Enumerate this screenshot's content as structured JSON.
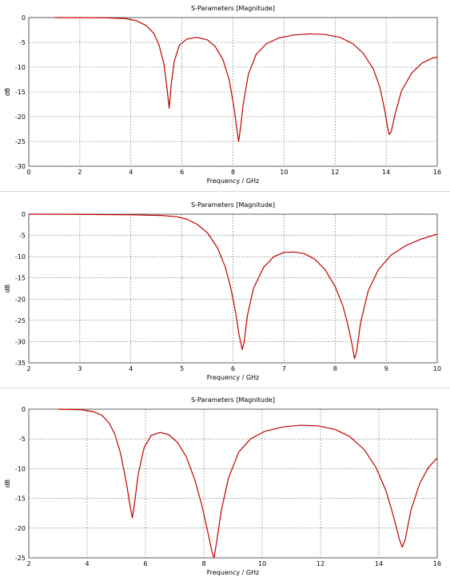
{
  "chart_data": [
    {
      "type": "line",
      "title": "S-Parameters [Magnitude]",
      "xlabel": "Frequency / GHz",
      "ylabel": "dB",
      "xlim": [
        0,
        16
      ],
      "ylim": [
        -30,
        0
      ],
      "xticks": [
        0,
        2,
        4,
        6,
        8,
        10,
        12,
        14,
        16
      ],
      "yticks": [
        0,
        -5,
        -10,
        -15,
        -20,
        -25,
        -30
      ],
      "grid": true,
      "line_color": "#c00000",
      "series": [
        {
          "x": [
            1.0,
            2.0,
            3.0,
            3.8,
            4.2,
            4.6,
            4.9,
            5.1,
            5.3,
            5.42,
            5.5,
            5.58,
            5.7,
            5.9,
            6.2,
            6.6,
            7.0,
            7.3,
            7.6,
            7.85,
            8.05,
            8.15,
            8.22,
            8.3,
            8.4,
            8.6,
            8.9,
            9.3,
            9.8,
            10.4,
            11.0,
            11.6,
            12.2,
            12.7,
            13.1,
            13.5,
            13.75,
            13.95,
            14.05,
            14.12,
            14.2,
            14.35,
            14.6,
            15.0,
            15.4,
            15.8,
            16.0
          ],
          "y": [
            0,
            0,
            -0.05,
            -0.2,
            -0.6,
            -1.6,
            -3.2,
            -5.5,
            -9.5,
            -14.5,
            -18.3,
            -13.5,
            -8.8,
            -5.6,
            -4.3,
            -4.0,
            -4.5,
            -5.8,
            -8.4,
            -12.5,
            -18.5,
            -22.5,
            -25.0,
            -22.0,
            -17.5,
            -11.5,
            -7.5,
            -5.3,
            -4.1,
            -3.5,
            -3.3,
            -3.4,
            -4.0,
            -5.3,
            -7.2,
            -10.4,
            -14.0,
            -18.8,
            -22.0,
            -23.6,
            -23.0,
            -19.5,
            -14.8,
            -11.2,
            -9.2,
            -8.2,
            -8.0
          ]
        }
      ]
    },
    {
      "type": "line",
      "title": "S-Parameters [Magnitude]",
      "xlabel": "Frequency / GHz",
      "ylabel": "dB",
      "xlim": [
        2,
        10
      ],
      "ylim": [
        -35,
        0
      ],
      "xticks": [
        2,
        3,
        4,
        5,
        6,
        7,
        8,
        9,
        10
      ],
      "yticks": [
        0,
        -5,
        -10,
        -15,
        -20,
        -25,
        -30,
        -35
      ],
      "grid": true,
      "line_color": "#c00000",
      "series": [
        {
          "x": [
            2.0,
            3.0,
            4.0,
            4.6,
            4.9,
            5.1,
            5.3,
            5.5,
            5.7,
            5.85,
            5.95,
            6.05,
            6.12,
            6.18,
            6.22,
            6.28,
            6.4,
            6.6,
            6.8,
            7.0,
            7.2,
            7.4,
            7.6,
            7.8,
            8.0,
            8.15,
            8.25,
            8.33,
            8.38,
            8.42,
            8.5,
            8.65,
            8.85,
            9.1,
            9.4,
            9.7,
            10.0
          ],
          "y": [
            0,
            -0.05,
            -0.15,
            -0.3,
            -0.6,
            -1.2,
            -2.4,
            -4.4,
            -8.0,
            -12.5,
            -17.0,
            -23.0,
            -28.5,
            -31.9,
            -30.0,
            -24.0,
            -17.5,
            -12.5,
            -10.0,
            -9.0,
            -8.9,
            -9.3,
            -10.6,
            -13.0,
            -17.0,
            -21.5,
            -26.0,
            -30.5,
            -34.0,
            -32.5,
            -25.5,
            -18.0,
            -13.0,
            -9.6,
            -7.3,
            -5.8,
            -4.7
          ]
        }
      ]
    },
    {
      "type": "line",
      "title": "S-Parameters [Magnitude]",
      "xlabel": "Frequency / GHz",
      "ylabel": "dB",
      "xlim": [
        2,
        16
      ],
      "ylim": [
        -25,
        0
      ],
      "xticks": [
        2,
        4,
        6,
        8,
        10,
        12,
        14,
        16
      ],
      "yticks": [
        0,
        -5,
        -10,
        -15,
        -20,
        -25
      ],
      "grid": true,
      "line_color": "#c00000",
      "series": [
        {
          "x": [
            3.0,
            3.8,
            4.2,
            4.5,
            4.75,
            4.95,
            5.15,
            5.35,
            5.48,
            5.55,
            5.62,
            5.75,
            5.95,
            6.2,
            6.5,
            6.8,
            7.1,
            7.4,
            7.7,
            7.95,
            8.15,
            8.28,
            8.35,
            8.45,
            8.6,
            8.85,
            9.2,
            9.6,
            10.1,
            10.7,
            11.3,
            11.9,
            12.5,
            13.0,
            13.5,
            13.9,
            14.25,
            14.5,
            14.7,
            14.8,
            14.9,
            15.1,
            15.4,
            15.7,
            16.0
          ],
          "y": [
            0,
            -0.1,
            -0.4,
            -1.0,
            -2.3,
            -4.2,
            -7.5,
            -12.5,
            -16.5,
            -18.3,
            -16.0,
            -11.0,
            -6.5,
            -4.4,
            -3.9,
            -4.3,
            -5.6,
            -8.0,
            -12.0,
            -16.5,
            -21.0,
            -24.0,
            -25.0,
            -22.0,
            -17.0,
            -11.5,
            -7.2,
            -5.0,
            -3.7,
            -3.0,
            -2.7,
            -2.8,
            -3.4,
            -4.6,
            -6.8,
            -9.8,
            -13.8,
            -18.0,
            -21.8,
            -23.2,
            -22.0,
            -17.0,
            -12.5,
            -9.8,
            -8.2
          ]
        }
      ]
    }
  ]
}
